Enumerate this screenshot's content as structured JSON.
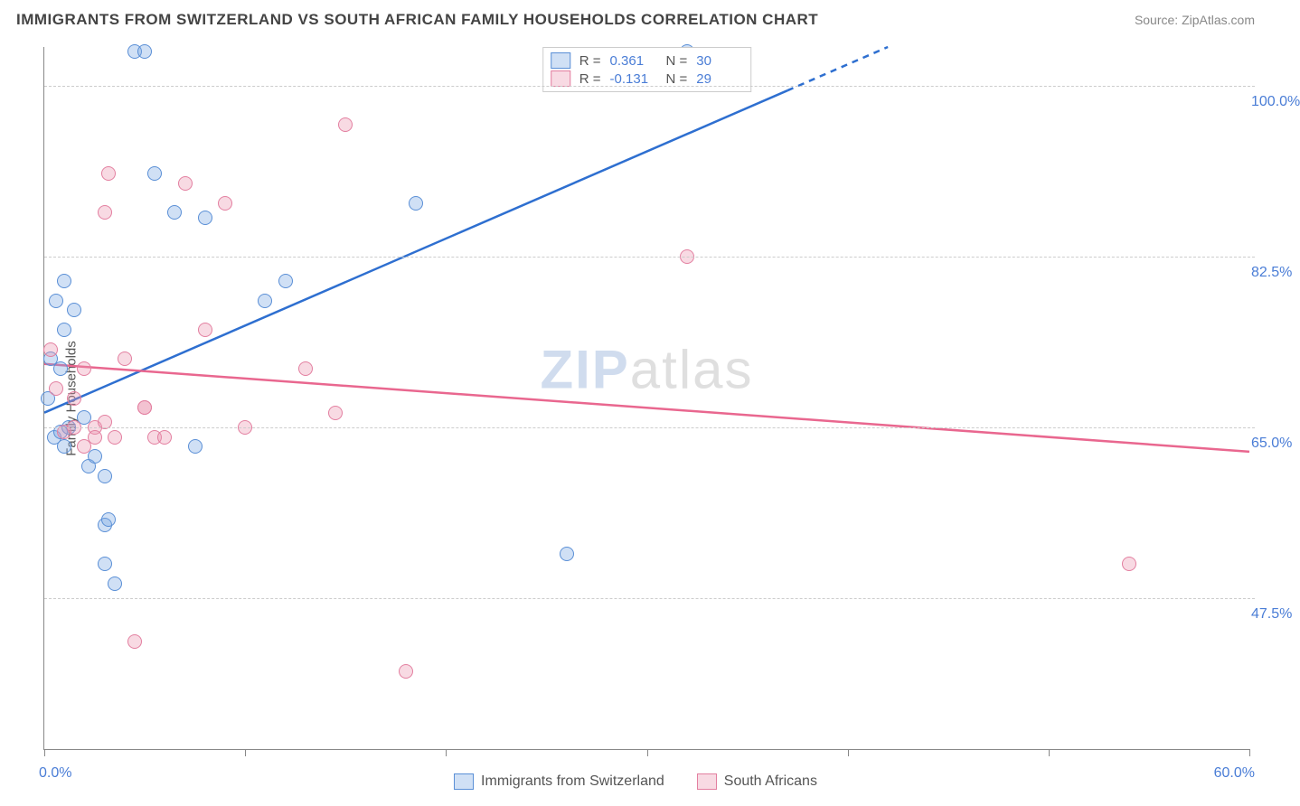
{
  "header": {
    "title": "IMMIGRANTS FROM SWITZERLAND VS SOUTH AFRICAN FAMILY HOUSEHOLDS CORRELATION CHART",
    "source": "Source: ZipAtlas.com"
  },
  "watermark": {
    "z": "ZIP",
    "rest": "atlas"
  },
  "chart": {
    "type": "scatter",
    "xlim": [
      0,
      60
    ],
    "ylim": [
      32,
      104
    ],
    "x_ticks": [
      0,
      10,
      20,
      30,
      40,
      50,
      60
    ],
    "y_gridlines": [
      47.5,
      65.0,
      82.5,
      100.0
    ],
    "y_tick_labels": [
      "47.5%",
      "65.0%",
      "82.5%",
      "100.0%"
    ],
    "x_min_label": "0.0%",
    "x_max_label": "60.0%",
    "ylabel": "Family Households",
    "background_color": "#ffffff",
    "grid_color": "#cccccc",
    "dot_radius": 8,
    "series": [
      {
        "name": "Immigrants from Switzerland",
        "fill": "rgba(120,165,225,0.35)",
        "stroke": "#5a8fd6",
        "line_color": "#2e6fd0",
        "R": "0.361",
        "N": "30",
        "trend": {
          "x1": 0,
          "y1": 66.5,
          "x2": 42,
          "y2": 104,
          "dash_from_x": 37
        },
        "points": [
          [
            0.2,
            68
          ],
          [
            0.5,
            64
          ],
          [
            0.8,
            64.5
          ],
          [
            1.0,
            63
          ],
          [
            1.2,
            65
          ],
          [
            0.3,
            72
          ],
          [
            0.6,
            78
          ],
          [
            1.0,
            80
          ],
          [
            1.5,
            77
          ],
          [
            2.0,
            66
          ],
          [
            2.2,
            61
          ],
          [
            2.5,
            62
          ],
          [
            3.0,
            55
          ],
          [
            3.2,
            55.5
          ],
          [
            3.0,
            60
          ],
          [
            3.5,
            49
          ],
          [
            3.0,
            51
          ],
          [
            4.5,
            103.5
          ],
          [
            5.0,
            103.5
          ],
          [
            5.5,
            91
          ],
          [
            6.5,
            87
          ],
          [
            7.5,
            63
          ],
          [
            8.0,
            86.5
          ],
          [
            11.0,
            78
          ],
          [
            12.0,
            80
          ],
          [
            18.5,
            88
          ],
          [
            26.0,
            52
          ],
          [
            32.0,
            103.5
          ],
          [
            1.0,
            75
          ],
          [
            0.8,
            71
          ]
        ]
      },
      {
        "name": "South Africans",
        "fill": "rgba(235,150,175,0.35)",
        "stroke": "#e37fa0",
        "line_color": "#e9678f",
        "R": "-0.131",
        "N": "29",
        "trend": {
          "x1": 0,
          "y1": 71.5,
          "x2": 60,
          "y2": 62.5,
          "dash_from_x": 999
        },
        "points": [
          [
            0.3,
            73
          ],
          [
            0.6,
            69
          ],
          [
            1.0,
            64.5
          ],
          [
            1.5,
            65
          ],
          [
            2.0,
            63
          ],
          [
            2.5,
            65
          ],
          [
            3.0,
            65.5
          ],
          [
            3.5,
            64
          ],
          [
            2.0,
            71
          ],
          [
            2.5,
            64
          ],
          [
            3.0,
            87
          ],
          [
            3.2,
            91
          ],
          [
            4.5,
            43
          ],
          [
            5.0,
            67
          ],
          [
            5.5,
            64
          ],
          [
            5.0,
            67
          ],
          [
            6.0,
            64
          ],
          [
            7.0,
            90
          ],
          [
            8.0,
            75
          ],
          [
            9.0,
            88
          ],
          [
            10.0,
            65
          ],
          [
            13.0,
            71
          ],
          [
            14.5,
            66.5
          ],
          [
            15.0,
            96
          ],
          [
            18.0,
            40
          ],
          [
            32.0,
            82.5
          ],
          [
            54.0,
            51
          ],
          [
            1.5,
            68
          ],
          [
            4.0,
            72
          ]
        ]
      }
    ]
  },
  "legend": {
    "series1": "Immigrants from Switzerland",
    "series2": "South Africans"
  }
}
